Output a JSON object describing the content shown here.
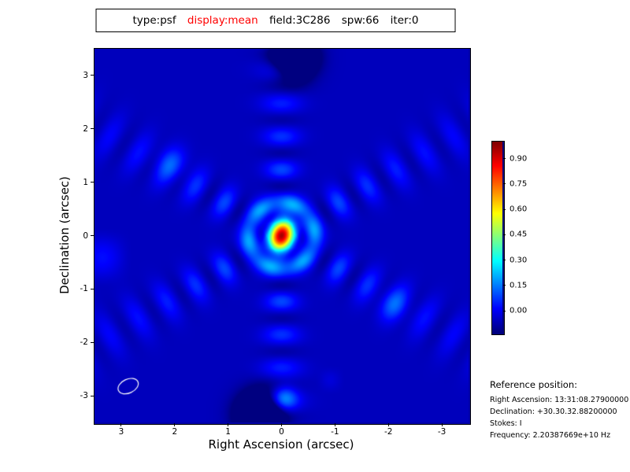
{
  "header": {
    "segments": [
      {
        "text": "type:psf",
        "color": "#000000"
      },
      {
        "text": "display:mean",
        "color": "#ff0000"
      },
      {
        "text": "field:3C286",
        "color": "#000000"
      },
      {
        "text": "spw:66",
        "color": "#000000"
      },
      {
        "text": "iter:0",
        "color": "#000000"
      }
    ]
  },
  "plot": {
    "xlabel": "Right Ascension (arcsec)",
    "ylabel": "Declination (arcsec)",
    "x_ticks": [
      "3",
      "2",
      "1",
      "0",
      "-1",
      "-2",
      "-3"
    ],
    "y_ticks": [
      "-3",
      "-2",
      "-1",
      "0",
      "1",
      "2",
      "3"
    ]
  },
  "colorbar": {
    "ticks": [
      "0.90",
      "0.75",
      "0.60",
      "0.45",
      "0.30",
      "0.15",
      "0.00"
    ]
  },
  "reference": {
    "title": "Reference position:",
    "lines": [
      "Right Ascension: 13:31:08.27900000",
      "Declination: +30.30.32.88200000",
      "Stokes: I",
      "Frequency: 2.20387669e+10 Hz"
    ]
  },
  "chart_data": {
    "type": "heatmap",
    "description": "Point spread function (synthesized beam) image: unit peak at (0,0) with six-armed diffraction sidelobe pattern on a blue (near-zero) background, jet colormap, white beam ellipse at lower left",
    "title": "type:psf display:mean field:3C286 spw:66 iter:0",
    "xlabel": "Right Ascension (arcsec)",
    "ylabel": "Declination (arcsec)",
    "xlim": [
      3.5,
      -3.5
    ],
    "ylim": [
      -3.5,
      3.5
    ],
    "x_tick_values": [
      3,
      2,
      1,
      0,
      -1,
      -2,
      -3
    ],
    "y_tick_values": [
      -3,
      -2,
      -1,
      0,
      1,
      2,
      3
    ],
    "colormap": "jet",
    "clim": [
      -0.13,
      1.0
    ],
    "colorbar_tick_values": [
      0.9,
      0.75,
      0.6,
      0.45,
      0.3,
      0.15,
      0.0
    ],
    "peak": {
      "x": 0,
      "y": 0,
      "value": 1.02,
      "sigma_x": 0.16,
      "sigma_y": 0.21,
      "angle_deg": 20
    },
    "inner_ring": {
      "radius": 0.62,
      "amplitude": 0.17,
      "sigma": 0.115
    },
    "sidelobe_arms": {
      "angles_deg": [
        30,
        90,
        150,
        210,
        270,
        330
      ],
      "amplitude": 0.22,
      "spacing_arcsec": 0.62,
      "width_arcsec": 0.3,
      "decay": 0.3
    },
    "negative_spots": [
      {
        "x": -0.26,
        "y": 3.32,
        "value": -0.42,
        "sigma": 0.26
      },
      {
        "x": 0.4,
        "y": -3.35,
        "value": -0.45,
        "sigma": 0.28
      }
    ],
    "bright_spots": [
      {
        "x": -0.3,
        "y": 3.45,
        "value": 0.28,
        "sigma": 0.15
      },
      {
        "x": -0.05,
        "y": -3.05,
        "value": 0.2,
        "sigma": 0.17
      },
      {
        "x": 2.05,
        "y": 1.35,
        "value": 0.1,
        "sigma": 0.22
      },
      {
        "x": -2.1,
        "y": -1.3,
        "value": 0.1,
        "sigma": 0.22
      }
    ],
    "noise_amplitude": 0.15,
    "beam_ellipse": {
      "x": 2.87,
      "y": -2.82,
      "rx": 0.2,
      "ry": 0.13,
      "angle_deg": -25,
      "color": "#ffffff"
    }
  }
}
